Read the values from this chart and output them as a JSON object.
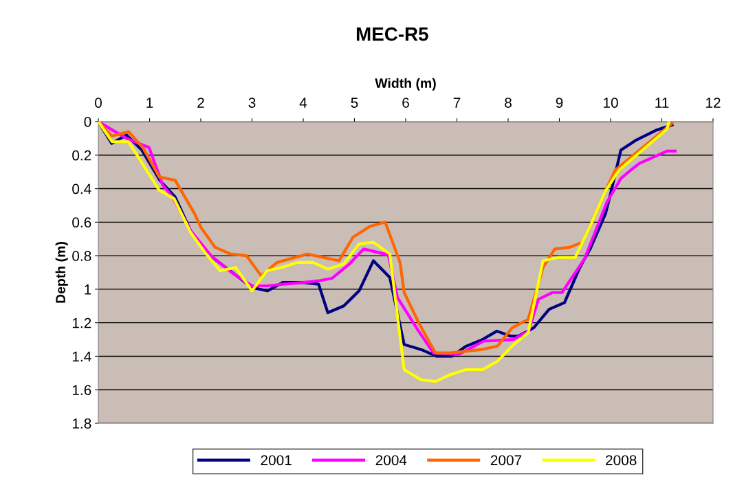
{
  "chart_data": {
    "type": "line",
    "title": "MEC-R5",
    "xlabel": "Width (m)",
    "ylabel": "Depth (m)",
    "xlim": [
      0,
      12
    ],
    "xticks": [
      0,
      1,
      2,
      3,
      4,
      5,
      6,
      7,
      8,
      9,
      10,
      11,
      12
    ],
    "ylim": [
      1.8,
      0
    ],
    "yticks": [
      0,
      0.2,
      0.4,
      0.6,
      0.8,
      1,
      1.2,
      1.4,
      1.6,
      1.8
    ],
    "grid": "y",
    "legend": "bottom",
    "marker": "none",
    "line_style": "solid",
    "series": [
      {
        "name": "2001",
        "color": "#000080",
        "x": [
          0,
          0.26,
          0.55,
          0.85,
          1.2,
          1.5,
          1.8,
          2.1,
          2.4,
          2.7,
          3.0,
          3.3,
          3.6,
          4.0,
          4.3,
          4.48,
          4.79,
          5.09,
          5.37,
          5.69,
          5.97,
          6.3,
          6.6,
          6.9,
          7.18,
          7.5,
          7.78,
          8.05,
          8.2,
          8.5,
          8.8,
          9.1,
          9.4,
          9.6,
          9.9,
          10.0,
          10.2,
          10.5,
          10.9,
          11.2
        ],
        "values": [
          0,
          0.13,
          0.08,
          0.17,
          0.35,
          0.45,
          0.65,
          0.78,
          0.85,
          0.92,
          0.99,
          1.01,
          0.96,
          0.96,
          0.97,
          1.14,
          1.1,
          1.01,
          0.83,
          0.93,
          1.33,
          1.36,
          1.4,
          1.4,
          1.34,
          1.3,
          1.25,
          1.28,
          1.28,
          1.23,
          1.12,
          1.08,
          0.87,
          0.76,
          0.55,
          0.43,
          0.17,
          0.11,
          0.05,
          0.02
        ]
      },
      {
        "name": "2004",
        "color": "#ff00ff",
        "x": [
          0,
          0.55,
          0.99,
          1.2,
          1.26,
          1.45,
          1.8,
          2.2,
          2.6,
          3.0,
          3.3,
          3.6,
          4.0,
          4.3,
          4.56,
          4.9,
          5.18,
          5.66,
          5.84,
          6.23,
          6.54,
          7.03,
          7.52,
          8.1,
          8.4,
          8.59,
          8.86,
          9.05,
          9.49,
          9.93,
          10.2,
          10.39,
          10.56,
          11.1,
          11.26
        ],
        "values": [
          0,
          0.1,
          0.155,
          0.33,
          0.38,
          0.45,
          0.65,
          0.8,
          0.9,
          0.98,
          0.98,
          0.97,
          0.96,
          0.95,
          0.935,
          0.85,
          0.76,
          0.795,
          1.05,
          1.24,
          1.38,
          1.39,
          1.31,
          1.3,
          1.25,
          1.06,
          1.02,
          1.02,
          0.82,
          0.48,
          0.34,
          0.29,
          0.25,
          0.176,
          0.176
        ]
      },
      {
        "name": "2007",
        "color": "#ff6600",
        "x": [
          0,
          0.26,
          0.59,
          0.87,
          1.19,
          1.5,
          1.88,
          2.0,
          2.28,
          2.58,
          2.89,
          3.18,
          3.49,
          3.85,
          4.08,
          4.7,
          4.97,
          5.3,
          5.6,
          5.89,
          5.97,
          6.27,
          6.58,
          6.87,
          7.48,
          7.79,
          8.08,
          8.39,
          8.68,
          8.91,
          9.2,
          9.45,
          9.62,
          9.89,
          10.09,
          11.2
        ],
        "values": [
          0,
          0.086,
          0.06,
          0.155,
          0.33,
          0.35,
          0.55,
          0.63,
          0.75,
          0.79,
          0.8,
          0.92,
          0.84,
          0.81,
          0.79,
          0.83,
          0.69,
          0.625,
          0.6,
          0.84,
          1.02,
          1.21,
          1.38,
          1.38,
          1.36,
          1.34,
          1.23,
          1.18,
          0.87,
          0.76,
          0.75,
          0.72,
          0.61,
          0.42,
          0.29,
          0.01
        ]
      },
      {
        "name": "2008",
        "color": "#ffff00",
        "x": [
          0,
          0.27,
          0.59,
          1.19,
          1.48,
          1.8,
          2.08,
          2.38,
          2.68,
          3.0,
          3.29,
          3.58,
          3.89,
          4.19,
          4.48,
          4.79,
          5.09,
          5.37,
          5.69,
          5.97,
          6.3,
          6.58,
          6.87,
          7.17,
          7.5,
          7.79,
          8.11,
          8.39,
          8.68,
          8.99,
          9.31,
          9.62,
          9.89,
          10.16,
          11.1,
          11.14
        ],
        "values": [
          0,
          0.12,
          0.12,
          0.41,
          0.46,
          0.66,
          0.78,
          0.89,
          0.87,
          1.01,
          0.89,
          0.87,
          0.84,
          0.84,
          0.88,
          0.85,
          0.73,
          0.72,
          0.79,
          1.48,
          1.54,
          1.55,
          1.51,
          1.48,
          1.48,
          1.43,
          1.33,
          1.26,
          0.83,
          0.81,
          0.81,
          0.61,
          0.42,
          0.29,
          0.045,
          0.0
        ]
      }
    ]
  }
}
